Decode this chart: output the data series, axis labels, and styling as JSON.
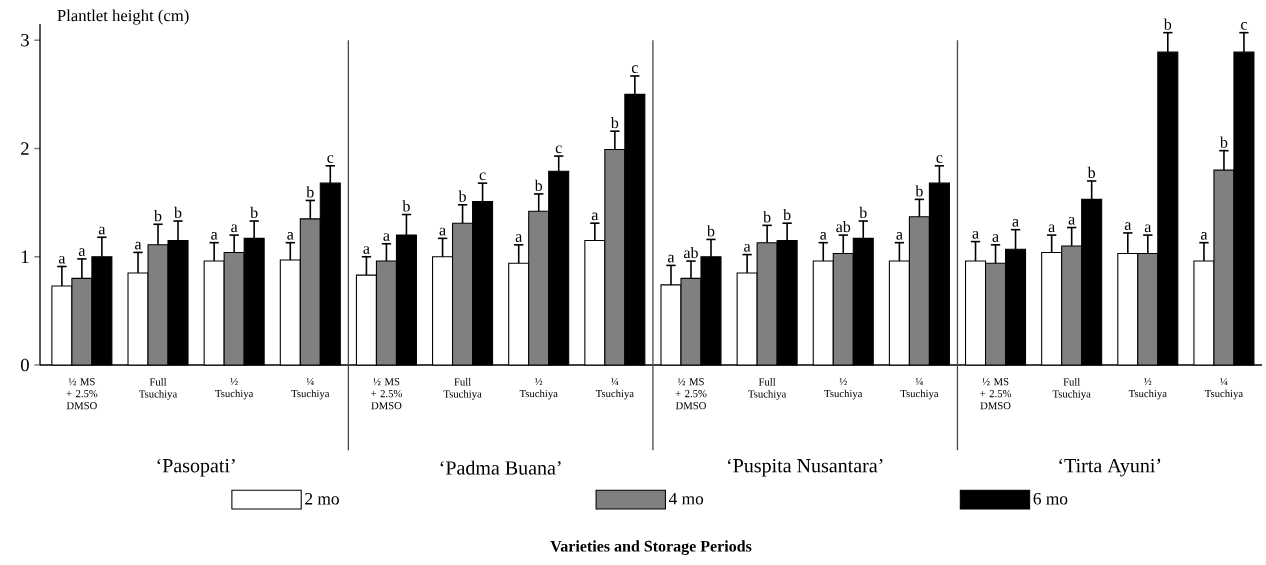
{
  "chart_data": {
    "type": "bar",
    "ylabel": "Plantlet height (cm)",
    "categories": [
      "½ MS + 2.5% DMSO",
      "Full Tsuchiya",
      "½ Tsuchiya",
      "¼ Tsuchiya",
      "½ MS + 2.5% DMSO",
      "Full Tsuchiya",
      "½ Tsuchiya",
      "¼ Tsuchiya",
      "½ MS + 2.5% DMSO",
      "Full Tsuchiya",
      "½ Tsuchiya",
      "¼ Tsuchiya",
      "½ MS + 2.5% DMSO",
      "Full Tsuchiya",
      "½ Tsuchiya",
      "¼ Tsuchiya"
    ],
    "series": [
      {
        "name": "2 mo",
        "color": "#ffffff",
        "values": [
          0.73,
          0.85,
          0.96,
          0.97,
          0.83,
          1.0,
          0.94,
          1.15,
          0.74,
          0.85,
          0.96,
          0.96,
          0.96,
          1.04,
          1.03,
          0.96
        ],
        "errors": [
          0.18,
          0.19,
          0.17,
          0.16,
          0.17,
          0.17,
          0.17,
          0.16,
          0.18,
          0.17,
          0.17,
          0.17,
          0.18,
          0.16,
          0.19,
          0.17
        ],
        "value_labels": [
          "a",
          "a",
          "a",
          "a",
          "a",
          "a",
          "a",
          "a",
          "a",
          "a",
          "a",
          "a",
          "a",
          "a",
          "a",
          "a"
        ]
      },
      {
        "name": "4 mo",
        "color": "#808080",
        "values": [
          0.8,
          1.11,
          1.04,
          1.35,
          0.96,
          1.31,
          1.42,
          1.99,
          0.8,
          1.13,
          1.03,
          1.37,
          0.94,
          1.1,
          1.03,
          1.8
        ],
        "errors": [
          0.18,
          0.19,
          0.16,
          0.17,
          0.16,
          0.17,
          0.16,
          0.17,
          0.16,
          0.16,
          0.17,
          0.16,
          0.17,
          0.17,
          0.17,
          0.18
        ],
        "value_labels": [
          "a",
          "b",
          "a",
          "b",
          "a",
          "b",
          "b",
          "b",
          "ab",
          "b",
          "ab",
          "b",
          "a",
          "a",
          "a",
          "b"
        ]
      },
      {
        "name": "6 mo",
        "color": "#000000",
        "values": [
          1.0,
          1.15,
          1.17,
          1.68,
          1.2,
          1.51,
          1.79,
          2.5,
          1.0,
          1.15,
          1.17,
          1.68,
          1.07,
          1.53,
          2.89,
          2.89
        ],
        "errors": [
          0.18,
          0.18,
          0.16,
          0.16,
          0.19,
          0.17,
          0.14,
          0.17,
          0.16,
          0.16,
          0.16,
          0.16,
          0.18,
          0.17,
          0.18,
          0.18
        ],
        "value_labels": [
          "a",
          "b",
          "b",
          "c",
          "b",
          "c",
          "c",
          "c",
          "b",
          "b",
          "b",
          "c",
          "a",
          "b",
          "b",
          "c"
        ]
      }
    ],
    "annotations": [
      "‘Pasopati’",
      "‘Padma Buana’",
      "‘Puspita Nusantara’",
      "‘Tirta Ayuni’",
      "Varieties and Storage Periods"
    ],
    "ylim": [
      0,
      3.15
    ],
    "yticks": [
      0,
      1,
      2,
      3
    ],
    "legend": "bottom"
  }
}
